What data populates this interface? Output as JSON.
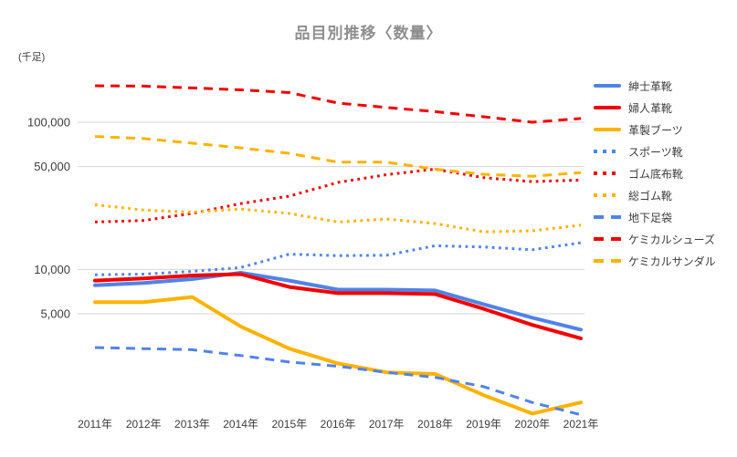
{
  "chart_data": {
    "type": "line",
    "title": "品目別推移〈数量〉",
    "unit_label": "(千足)",
    "xlabel": "",
    "ylabel": "(千足)",
    "y_scale": "log",
    "grid": true,
    "legend_position": "right",
    "x_labels": [
      "2011年",
      "2012年",
      "2013年",
      "2014年",
      "2015年",
      "2016年",
      "2017年",
      "2018年",
      "2019年",
      "2020年",
      "2021年"
    ],
    "y_ticks": [
      {
        "value": 5000,
        "label": "5,000"
      },
      {
        "value": 10000,
        "label": "10,000"
      },
      {
        "value": 50000,
        "label": "50,000"
      },
      {
        "value": 100000,
        "label": "100,000"
      }
    ],
    "y_domain": [
      1000,
      230000
    ],
    "palette": {
      "blue": "#5083E8",
      "red": "#F20000",
      "yellow": "#FFB300",
      "grid": "#D6D6D6",
      "title": "#8E8E8E",
      "label": "#3C3C3C"
    },
    "series": [
      {
        "name": "紳士革靴",
        "color": "blue",
        "style": "solid",
        "values": [
          7800,
          8100,
          8600,
          9500,
          8400,
          7300,
          7300,
          7200,
          5800,
          4700,
          3900
        ]
      },
      {
        "name": "婦人革靴",
        "color": "red",
        "style": "solid",
        "values": [
          8400,
          8700,
          9100,
          9300,
          7600,
          6900,
          6900,
          6800,
          5400,
          4200,
          3400
        ]
      },
      {
        "name": "革製ブーツ",
        "color": "yellow",
        "style": "solid",
        "values": [
          6000,
          6000,
          6500,
          4100,
          2900,
          2300,
          2000,
          1950,
          1400,
          1050,
          1250
        ]
      },
      {
        "name": "スポーツ靴",
        "color": "blue",
        "style": "dotted",
        "values": [
          9200,
          9300,
          9700,
          10300,
          12700,
          12400,
          12500,
          14500,
          14200,
          13600,
          15200
        ]
      },
      {
        "name": "ゴム底布靴",
        "color": "red",
        "style": "dotted",
        "values": [
          21000,
          21500,
          24000,
          28000,
          31500,
          39000,
          44000,
          48000,
          42000,
          39500,
          40500
        ]
      },
      {
        "name": "総ゴム靴",
        "color": "yellow",
        "style": "dotted",
        "values": [
          27500,
          25300,
          24500,
          25700,
          24000,
          21000,
          22000,
          20500,
          18000,
          18300,
          20000
        ]
      },
      {
        "name": "地下足袋",
        "color": "blue",
        "style": "dashed",
        "values": [
          2950,
          2900,
          2850,
          2600,
          2350,
          2200,
          2000,
          1850,
          1600,
          1250,
          1030
        ]
      },
      {
        "name": "ケミカルシューズ",
        "color": "red",
        "style": "dashed",
        "values": [
          177000,
          176000,
          171000,
          166000,
          159000,
          135000,
          126000,
          118000,
          109000,
          100000,
          106000
        ]
      },
      {
        "name": "ケミカルサンダル",
        "color": "yellow",
        "style": "dashed",
        "values": [
          80000,
          77500,
          72000,
          67000,
          61500,
          53500,
          53500,
          48000,
          44300,
          43000,
          45500
        ]
      }
    ]
  }
}
